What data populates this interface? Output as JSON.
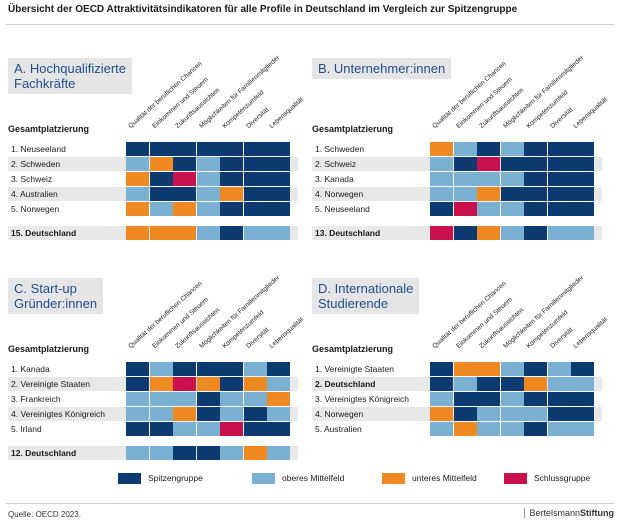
{
  "title": "Übersicht der OECD Attraktivitätsindikatoren für alle Profile in Deutschland im Vergleich zur Spitzengruppe",
  "source": "Quelle: OECD 2023.",
  "brand": {
    "regular": "Bertelsmann",
    "bold": "Stiftung"
  },
  "colors": {
    "spitze": "#0e3a72",
    "oberes": "#7ab1d2",
    "unteres": "#ef8a23",
    "schluss": "#c9104f"
  },
  "legend": [
    {
      "key": "spitze",
      "label": "Spitzengruppe"
    },
    {
      "key": "oberes",
      "label": "oberes Mittelfeld"
    },
    {
      "key": "unteres",
      "label": "unteres Mittelfeld"
    },
    {
      "key": "schluss",
      "label": "Schlussgruppe"
    }
  ],
  "chart_data": [
    {
      "type": "heatmap",
      "title": "A. Hochqualifizierte\nFachkräfte",
      "ylabel": "Gesamtplatzierung",
      "columns": [
        "Qualität der beruflichen Chancen",
        "Einkommen und Steuern",
        "Zukunftsaussichten",
        "Möglichkeiten für Familienmitglieder",
        "Kompetenzumfeld",
        "Diversität",
        "Lebensqualität"
      ],
      "rows": [
        {
          "label": "1.  Neuseeland",
          "values": [
            "spitze",
            "spitze",
            "spitze",
            "spitze",
            "spitze",
            "spitze",
            "spitze"
          ]
        },
        {
          "label": "2.  Schweden",
          "values": [
            "oberes",
            "unteres",
            "spitze",
            "oberes",
            "spitze",
            "spitze",
            "spitze"
          ]
        },
        {
          "label": "3.  Schweiz",
          "values": [
            "unteres",
            "spitze",
            "schluss",
            "oberes",
            "spitze",
            "spitze",
            "spitze"
          ]
        },
        {
          "label": "4.  Australien",
          "values": [
            "oberes",
            "spitze",
            "spitze",
            "oberes",
            "unteres",
            "spitze",
            "spitze"
          ]
        },
        {
          "label": "5.  Norwegen",
          "values": [
            "unteres",
            "oberes",
            "unteres",
            "oberes",
            "spitze",
            "spitze",
            "spitze"
          ]
        },
        {
          "label": "15. Deutschland",
          "values": [
            "unteres",
            "unteres",
            "unteres",
            "oberes",
            "spitze",
            "oberes",
            "oberes"
          ],
          "germany": true
        }
      ]
    },
    {
      "type": "heatmap",
      "title": "B. Unternehmer:innen",
      "ylabel": "Gesamtplatzierung",
      "columns": [
        "Qualität der beruflichen Chancen",
        "Einkommen und Steuern",
        "Zukunftsaussichten",
        "Möglichkeiten für Familienmitglieder",
        "Kompetenzumfeld",
        "Diversität",
        "Lebensqualität"
      ],
      "rows": [
        {
          "label": "1.  Schweden",
          "values": [
            "unteres",
            "oberes",
            "spitze",
            "oberes",
            "spitze",
            "spitze",
            "spitze"
          ]
        },
        {
          "label": "2.  Schweiz",
          "values": [
            "oberes",
            "spitze",
            "schluss",
            "spitze",
            "spitze",
            "spitze",
            "spitze"
          ]
        },
        {
          "label": "3.  Kanada",
          "values": [
            "oberes",
            "oberes",
            "oberes",
            "oberes",
            "spitze",
            "spitze",
            "spitze"
          ]
        },
        {
          "label": "4.  Norwegen",
          "values": [
            "oberes",
            "oberes",
            "unteres",
            "spitze",
            "spitze",
            "spitze",
            "spitze"
          ]
        },
        {
          "label": "5.  Neuseeland",
          "values": [
            "spitze",
            "schluss",
            "oberes",
            "oberes",
            "spitze",
            "spitze",
            "spitze"
          ]
        },
        {
          "label": "13. Deutschland",
          "values": [
            "schluss",
            "spitze",
            "unteres",
            "oberes",
            "spitze",
            "oberes",
            "oberes"
          ],
          "germany": true
        }
      ]
    },
    {
      "type": "heatmap",
      "title": "C. Start-up\nGründer:innen",
      "ylabel": "Gesamtplatzierung",
      "columns": [
        "Qualität der beruflichen Chancen",
        "Einkommen und Steuern",
        "Zukunftsaussichten",
        "Möglichkeiten für Familienmitglieder",
        "Kompetenzumfeld",
        "Diversität",
        "Lebensqualität"
      ],
      "rows": [
        {
          "label": "1.  Kanada",
          "values": [
            "spitze",
            "oberes",
            "spitze",
            "spitze",
            "spitze",
            "oberes",
            "spitze"
          ]
        },
        {
          "label": "2.  Vereinigte Staaten",
          "values": [
            "spitze",
            "unteres",
            "schluss",
            "unteres",
            "spitze",
            "unteres",
            "oberes"
          ]
        },
        {
          "label": "3.  Frankreich",
          "values": [
            "oberes",
            "oberes",
            "oberes",
            "spitze",
            "oberes",
            "oberes",
            "unteres"
          ]
        },
        {
          "label": "4.  Vereinigtes Königreich",
          "values": [
            "oberes",
            "oberes",
            "unteres",
            "spitze",
            "oberes",
            "spitze",
            "oberes"
          ]
        },
        {
          "label": "5.  Irland",
          "values": [
            "spitze",
            "spitze",
            "oberes",
            "oberes",
            "schluss",
            "spitze",
            "spitze"
          ]
        },
        {
          "label": "12. Deutschland",
          "values": [
            "oberes",
            "oberes",
            "spitze",
            "spitze",
            "oberes",
            "unteres",
            "oberes"
          ],
          "germany": true
        }
      ]
    },
    {
      "type": "heatmap",
      "title": "D. Internationale\nStudierende",
      "ylabel": "Gesamtplatzierung",
      "columns": [
        "Qualität der beruflichen Chancen",
        "Einkommen und Steuern",
        "Zukunftsaussichten",
        "Möglichkeiten für Familienmitglieder",
        "Kompetenzumfeld",
        "Diversität",
        "Lebensqualität"
      ],
      "rows": [
        {
          "label": "1.  Vereinigte Staaten",
          "values": [
            "spitze",
            "unteres",
            "unteres",
            "oberes",
            "spitze",
            "oberes",
            "spitze"
          ]
        },
        {
          "label": "2.  Deutschland",
          "values": [
            "spitze",
            "oberes",
            "spitze",
            "spitze",
            "unteres",
            "oberes",
            "oberes"
          ],
          "germany": true
        },
        {
          "label": "3.  Vereinigtes Königreich",
          "values": [
            "oberes",
            "spitze",
            "spitze",
            "oberes",
            "spitze",
            "spitze",
            "spitze"
          ]
        },
        {
          "label": "4.  Norwegen",
          "values": [
            "unteres",
            "spitze",
            "oberes",
            "oberes",
            "oberes",
            "spitze",
            "spitze"
          ]
        },
        {
          "label": "5.  Australien",
          "values": [
            "oberes",
            "unteres",
            "oberes",
            "oberes",
            "spitze",
            "oberes",
            "oberes"
          ]
        }
      ]
    }
  ]
}
